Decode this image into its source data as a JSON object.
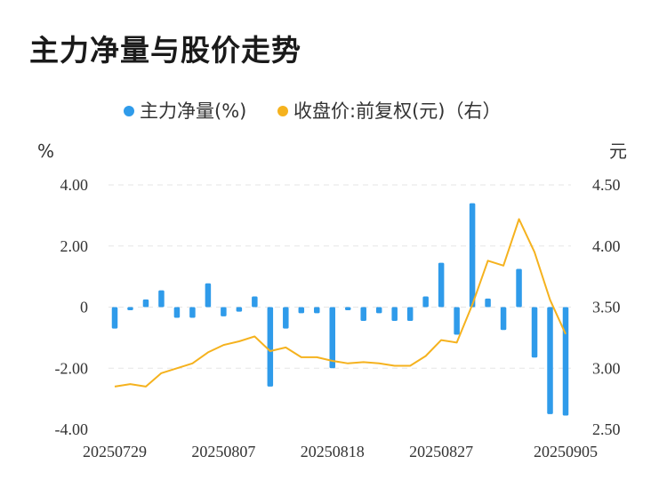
{
  "title": "主力净量与股价走势",
  "chart_data": {
    "type": "bar+line",
    "title": "主力净量与股价走势",
    "legend": [
      {
        "name": "主力净量(%)",
        "color": "#2f9bea",
        "marker": "dot"
      },
      {
        "name": "收盘价:前复权(元)（右）",
        "color": "#f5b21e",
        "marker": "dot"
      }
    ],
    "legend_position": "top-center",
    "y_left": {
      "unit": "%",
      "ylim": [
        -4,
        4
      ],
      "ticks": [
        "4.00",
        "2.00",
        "0",
        "-2.00",
        "-4.00"
      ]
    },
    "y_right": {
      "unit": "元",
      "ylim": [
        2.5,
        4.5
      ],
      "ticks": [
        "4.50",
        "4.00",
        "3.50",
        "3.00",
        "2.50"
      ]
    },
    "x_tick_labels": [
      "20250729",
      "20250807",
      "20250818",
      "20250827",
      "20250905"
    ],
    "grid": true,
    "bar_series": {
      "name": "主力净量(%)",
      "color": "#2f9bea",
      "values": [
        -0.7,
        -0.1,
        0.25,
        0.55,
        -0.35,
        -0.35,
        0.78,
        -0.3,
        -0.15,
        0.35,
        -2.6,
        -0.7,
        -0.2,
        -0.2,
        -2.0,
        -0.1,
        -0.45,
        -0.2,
        -0.45,
        -0.45,
        0.35,
        1.45,
        -0.9,
        3.4,
        0.28,
        -0.75,
        1.25,
        -1.65,
        -3.5,
        -3.55
      ]
    },
    "line_series": {
      "name": "收盘价:前复权(元)（右）",
      "color": "#f5b21e",
      "values": [
        2.85,
        2.87,
        2.85,
        2.96,
        3.0,
        3.04,
        3.13,
        3.19,
        3.22,
        3.26,
        3.14,
        3.17,
        3.09,
        3.09,
        3.06,
        3.04,
        3.05,
        3.04,
        3.02,
        3.02,
        3.1,
        3.23,
        3.21,
        3.52,
        3.88,
        3.84,
        4.22,
        3.95,
        3.56,
        3.28
      ]
    }
  }
}
